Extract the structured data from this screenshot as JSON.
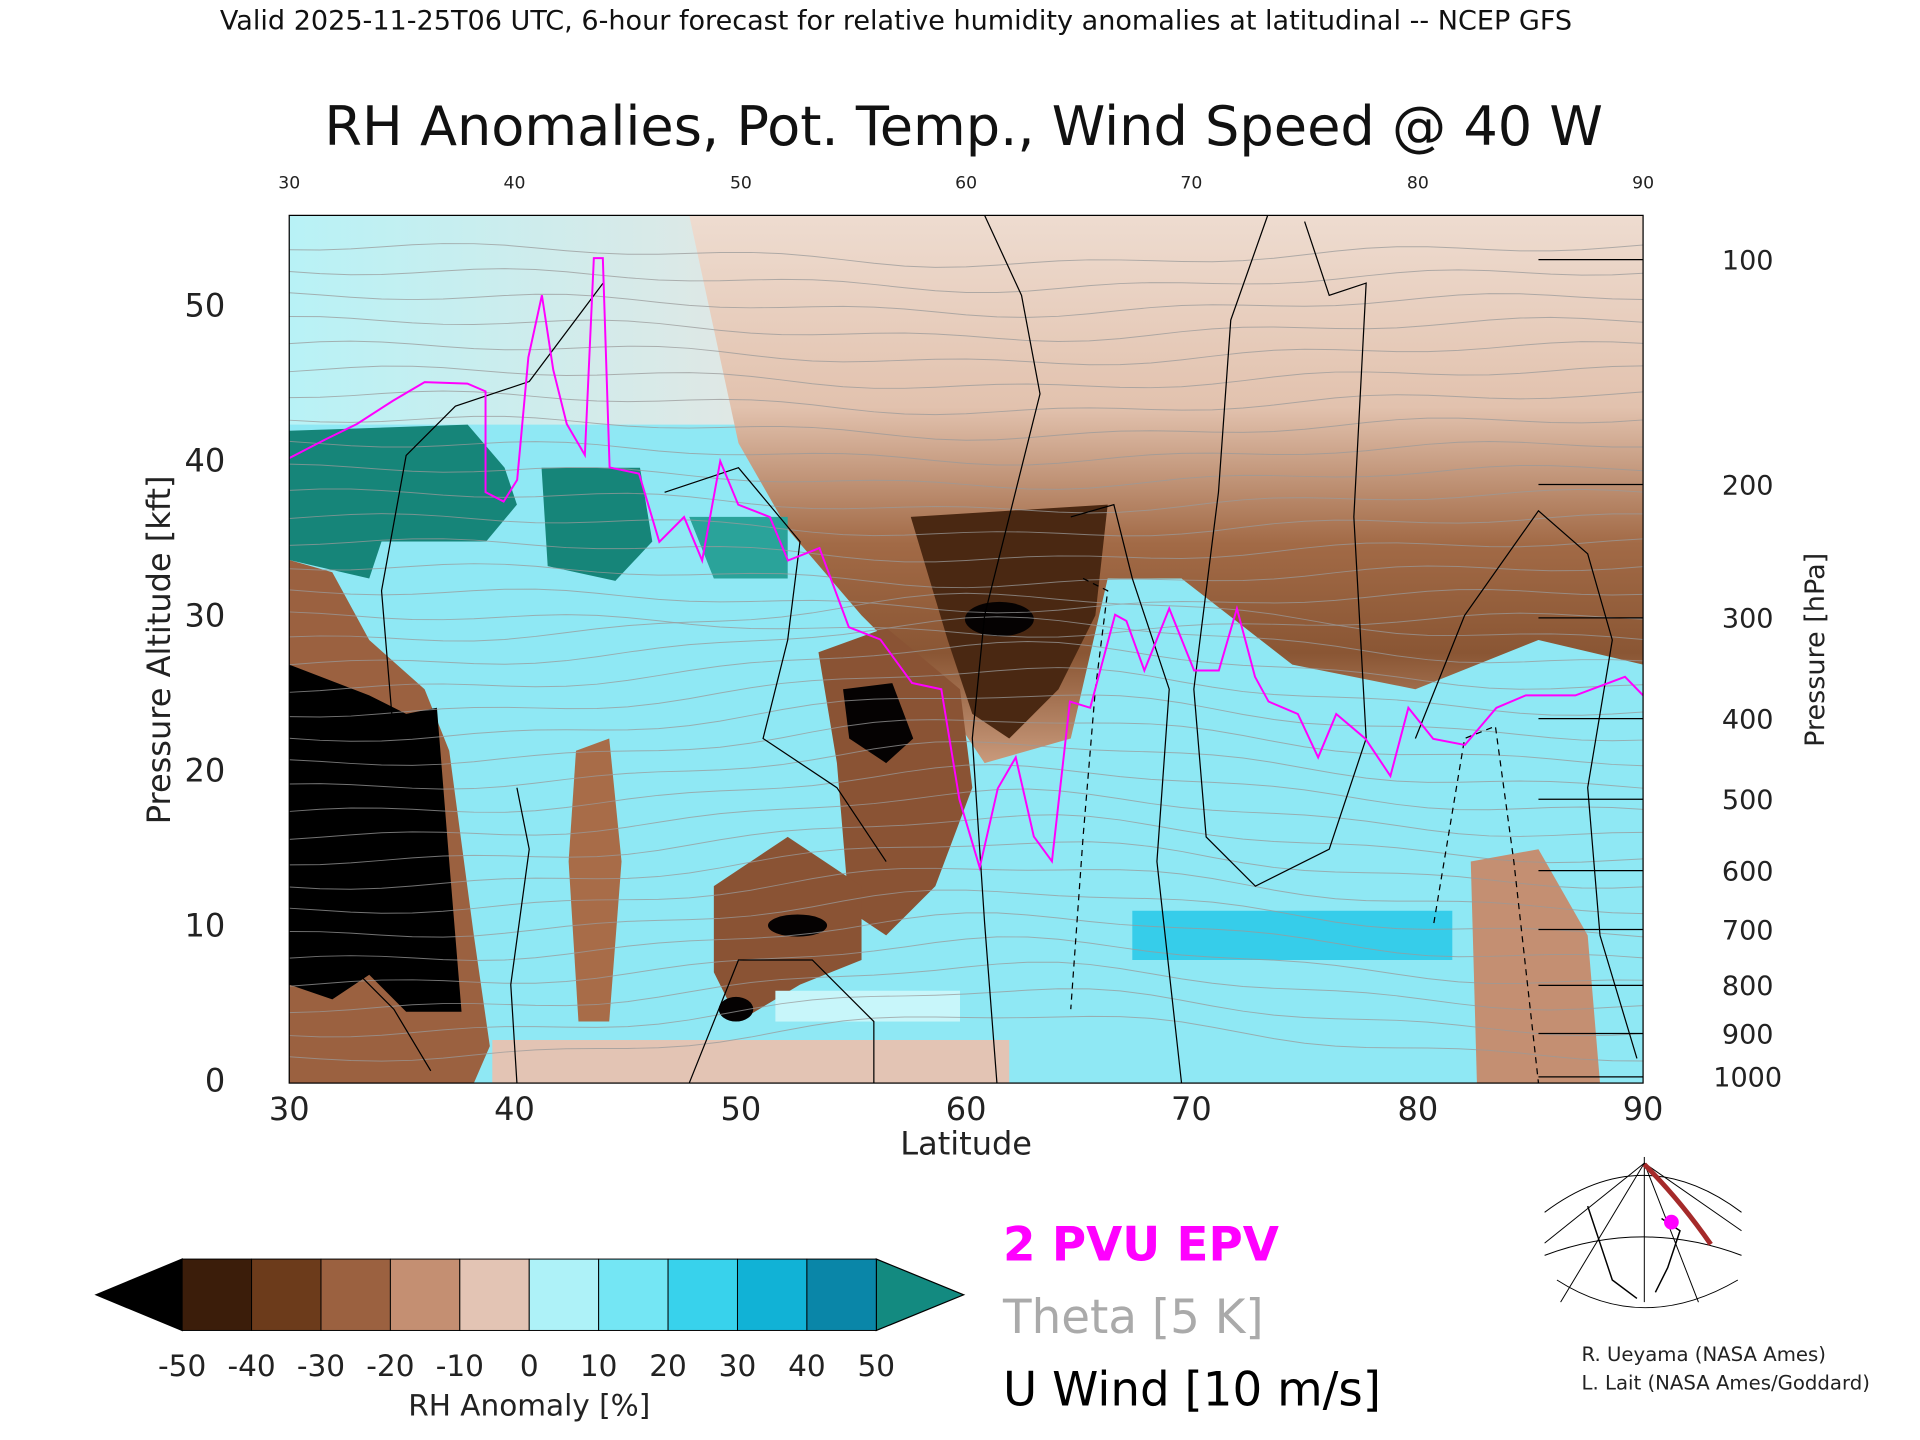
{
  "header": {
    "valid_line": "Valid 2025-11-25T06 UTC, 6-hour forecast for relative humidity anomalies at latitudinal -- NCEP GFS",
    "title": "RH Anomalies, Pot. Temp., Wind Speed @ 40 W"
  },
  "chart_data": {
    "type": "heatmap",
    "title": "RH Anomalies, Pot. Temp., Wind Speed @ 40 W",
    "xlabel": "Latitude",
    "ylabel": "Pressure Altitude [kft]",
    "y2label": "Pressure [hPa]",
    "xlim": [
      30,
      90
    ],
    "ylim": [
      0,
      55.9
    ],
    "x_ticks": [
      "30",
      "40",
      "50",
      "60",
      "70",
      "80",
      "90"
    ],
    "top_ticks": [
      "30",
      "40",
      "50",
      "60",
      "70",
      "80",
      "90"
    ],
    "y_ticks": [
      "0",
      "10",
      "20",
      "30",
      "40",
      "50"
    ],
    "y_tick_values": [
      0,
      10,
      20,
      30,
      40,
      50
    ],
    "pressure_ticks": [
      {
        "label": "100",
        "kft": 53.1
      },
      {
        "label": "200",
        "kft": 38.6
      },
      {
        "label": "300",
        "kft": 30.0
      },
      {
        "label": "400",
        "kft": 23.5
      },
      {
        "label": "500",
        "kft": 18.3
      },
      {
        "label": "600",
        "kft": 13.7
      },
      {
        "label": "700",
        "kft": 9.9
      },
      {
        "label": "800",
        "kft": 6.3
      },
      {
        "label": "900",
        "kft": 3.2
      },
      {
        "label": "1000",
        "kft": 0.4
      }
    ],
    "pv_line": {
      "name": "2 PVU EPV",
      "color": "#ff00ff",
      "lat": [
        30,
        31.6,
        33,
        34.6,
        36,
        37.9,
        38.7,
        38.7,
        39.5,
        40.1,
        40.6,
        41.2,
        41.7,
        42.3,
        43.1,
        43.5,
        43.9,
        44.2,
        45.5,
        46.4,
        47.5,
        48.3,
        49.1,
        49.9,
        51.3,
        52.1,
        53.5,
        54.8,
        56.2,
        57.6,
        58.9,
        59.7,
        60.6,
        61.4,
        62.2,
        63,
        63.8,
        64.6,
        65.5,
        66.6,
        67.1,
        67.9,
        69,
        70.1,
        71.2,
        72,
        72.8,
        73.4,
        74.7,
        75.6,
        76.4,
        77.7,
        78.8,
        79.6,
        80.7,
        82.1,
        83.5,
        84.8,
        87,
        89.2,
        90
      ],
      "kft": [
        40.3,
        41.5,
        42.5,
        44,
        45.2,
        45.1,
        44.6,
        38.1,
        37.5,
        38.9,
        46.8,
        50.8,
        46,
        42.5,
        40.5,
        53.2,
        53.2,
        39.7,
        39.3,
        34.9,
        36.5,
        33.7,
        40.1,
        37.3,
        36.5,
        33.7,
        34.5,
        29.4,
        28.6,
        25.8,
        25.4,
        18.3,
        13.9,
        19,
        21,
        15.9,
        14.3,
        24.6,
        24.2,
        30.2,
        29.8,
        26.6,
        30.6,
        26.6,
        26.6,
        30.6,
        26.2,
        24.6,
        23.8,
        21,
        23.8,
        22.2,
        19.8,
        24.2,
        22.2,
        21.8,
        24.2,
        25,
        25,
        26.2,
        25
      ]
    },
    "colorbar": {
      "label": "RH Anomaly [%]",
      "tick_labels": [
        "-50",
        "-40",
        "-30",
        "-20",
        "-10",
        "0",
        "10",
        "20",
        "30",
        "40",
        "50"
      ],
      "low_color": "#000000",
      "high_color": "#138a80",
      "bin_colors": [
        "#3b1d0a",
        "#6c3b1b",
        "#9b6140",
        "#c48f72",
        "#e3c4b4",
        "#dffafb",
        "#aef2f8",
        "#74e6f4",
        "#38d2ec",
        "#11b2d6",
        "#0a86a8"
      ]
    },
    "legend": {
      "pv": "2 PVU EPV",
      "theta": "Theta [5 K]",
      "wind": "U Wind [10 m/s]",
      "pv_color": "#ff00ff",
      "theta_color": "#aaaaaa",
      "wind_color": "#000000"
    }
  },
  "credits": {
    "line1": "R. Ueyama (NASA Ames)",
    "line2": "L. Lait (NASA Ames/Goddard)"
  }
}
